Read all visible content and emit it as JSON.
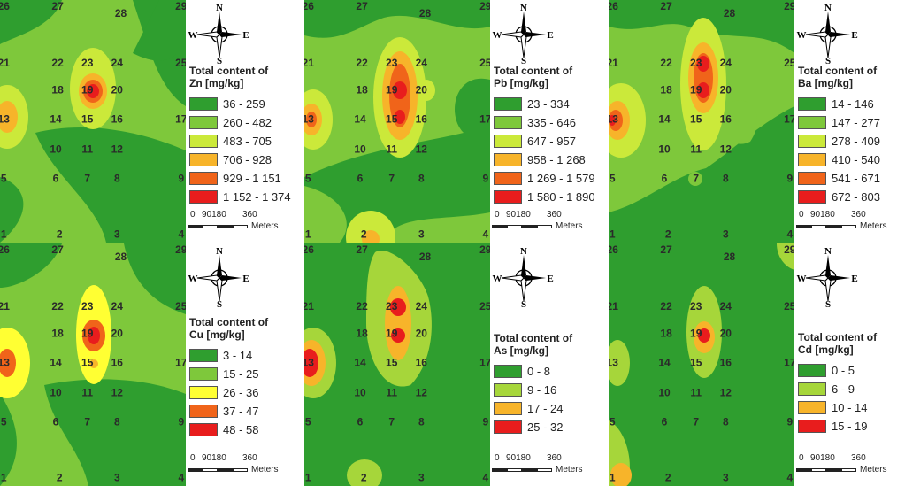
{
  "compass": {
    "n": "N",
    "e": "E",
    "s": "S",
    "w": "W"
  },
  "scale": {
    "ticks": [
      "0",
      "90180",
      "360"
    ],
    "unit": "Meters"
  },
  "points": [
    {
      "id": "1",
      "x": 0.02,
      "y": 0.965
    },
    {
      "id": "2",
      "x": 0.32,
      "y": 0.965
    },
    {
      "id": "3",
      "x": 0.63,
      "y": 0.965
    },
    {
      "id": "4",
      "x": 0.975,
      "y": 0.965
    },
    {
      "id": "5",
      "x": 0.02,
      "y": 0.735
    },
    {
      "id": "6",
      "x": 0.3,
      "y": 0.735
    },
    {
      "id": "7",
      "x": 0.47,
      "y": 0.735
    },
    {
      "id": "8",
      "x": 0.63,
      "y": 0.735
    },
    {
      "id": "9",
      "x": 0.975,
      "y": 0.735
    },
    {
      "id": "10",
      "x": 0.3,
      "y": 0.615
    },
    {
      "id": "11",
      "x": 0.47,
      "y": 0.615
    },
    {
      "id": "12",
      "x": 0.63,
      "y": 0.615
    },
    {
      "id": "13",
      "x": 0.02,
      "y": 0.49
    },
    {
      "id": "14",
      "x": 0.3,
      "y": 0.49
    },
    {
      "id": "15",
      "x": 0.47,
      "y": 0.49
    },
    {
      "id": "16",
      "x": 0.63,
      "y": 0.49
    },
    {
      "id": "17",
      "x": 0.975,
      "y": 0.49
    },
    {
      "id": "18",
      "x": 0.31,
      "y": 0.37
    },
    {
      "id": "19",
      "x": 0.47,
      "y": 0.37
    },
    {
      "id": "20",
      "x": 0.63,
      "y": 0.37
    },
    {
      "id": "21",
      "x": 0.02,
      "y": 0.26
    },
    {
      "id": "22",
      "x": 0.31,
      "y": 0.26
    },
    {
      "id": "23",
      "x": 0.47,
      "y": 0.26
    },
    {
      "id": "24",
      "x": 0.63,
      "y": 0.26
    },
    {
      "id": "25",
      "x": 0.975,
      "y": 0.26
    },
    {
      "id": "26",
      "x": 0.02,
      "y": 0.025
    },
    {
      "id": "27",
      "x": 0.31,
      "y": 0.025
    },
    {
      "id": "28",
      "x": 0.65,
      "y": 0.055
    },
    {
      "id": "29",
      "x": 0.975,
      "y": 0.025
    }
  ],
  "colors": {
    "c1": "#2f9e2f",
    "c2": "#7ec83b",
    "c3": "#cbe93a",
    "c4": "#f7b42a",
    "c5": "#f0641a",
    "c6": "#e81d1d",
    "c3b": "#ffff33"
  },
  "panels": [
    {
      "element": "Zn",
      "title": "Total content of",
      "subtitle": "Zn [mg/kg]",
      "legend": [
        {
          "label": "36 - 259",
          "color": "#2f9e2f"
        },
        {
          "label": "260 - 482",
          "color": "#7ec83b"
        },
        {
          "label": "483 - 705",
          "color": "#cbe93a"
        },
        {
          "label": "706 - 928",
          "color": "#f7b42a"
        },
        {
          "label": "929 - 1 151",
          "color": "#f0641a"
        },
        {
          "label": "1 152 - 1 374",
          "color": "#e81d1d"
        }
      ]
    },
    {
      "element": "Pb",
      "title": "Total content of",
      "subtitle": "Pb [mg/kg]",
      "legend": [
        {
          "label": "23 - 334",
          "color": "#2f9e2f"
        },
        {
          "label": "335 - 646",
          "color": "#7ec83b"
        },
        {
          "label": "647 - 957",
          "color": "#cbe93a"
        },
        {
          "label": "958 - 1 268",
          "color": "#f7b42a"
        },
        {
          "label": "1 269 - 1 579",
          "color": "#f0641a"
        },
        {
          "label": "1 580 - 1 890",
          "color": "#e81d1d"
        }
      ]
    },
    {
      "element": "Ba",
      "title": "Total content of",
      "subtitle": "Ba [mg/kg]",
      "legend": [
        {
          "label": "14 - 146",
          "color": "#2f9e2f"
        },
        {
          "label": "147 - 277",
          "color": "#7ec83b"
        },
        {
          "label": "278 - 409",
          "color": "#cbe93a"
        },
        {
          "label": "410 - 540",
          "color": "#f7b42a"
        },
        {
          "label": "541 - 671",
          "color": "#f0641a"
        },
        {
          "label": "672 - 803",
          "color": "#e81d1d"
        }
      ]
    },
    {
      "element": "Cu",
      "title": "Total content of",
      "subtitle": "Cu [mg/kg]",
      "legend": [
        {
          "label": "3 - 14",
          "color": "#2f9e2f"
        },
        {
          "label": "15 - 25",
          "color": "#7ec83b"
        },
        {
          "label": "26 - 36",
          "color": "#ffff33"
        },
        {
          "label": "37 - 47",
          "color": "#f0641a"
        },
        {
          "label": "48 - 58",
          "color": "#e81d1d"
        }
      ]
    },
    {
      "element": "As",
      "title": "Total content of",
      "subtitle": "As [mg/kg]",
      "legend": [
        {
          "label": "0 - 8",
          "color": "#2f9e2f"
        },
        {
          "label": "9 - 16",
          "color": "#a6d63a"
        },
        {
          "label": "17 - 24",
          "color": "#f7b42a"
        },
        {
          "label": "25 - 32",
          "color": "#e81d1d"
        }
      ]
    },
    {
      "element": "Cd",
      "title": "Total content of",
      "subtitle": "Cd [mg/kg]",
      "legend": [
        {
          "label": "0 - 5",
          "color": "#2f9e2f"
        },
        {
          "label": "6 - 9",
          "color": "#a6d63a"
        },
        {
          "label": "10 - 14",
          "color": "#f7b42a"
        },
        {
          "label": "15 - 19",
          "color": "#e81d1d"
        }
      ]
    }
  ]
}
